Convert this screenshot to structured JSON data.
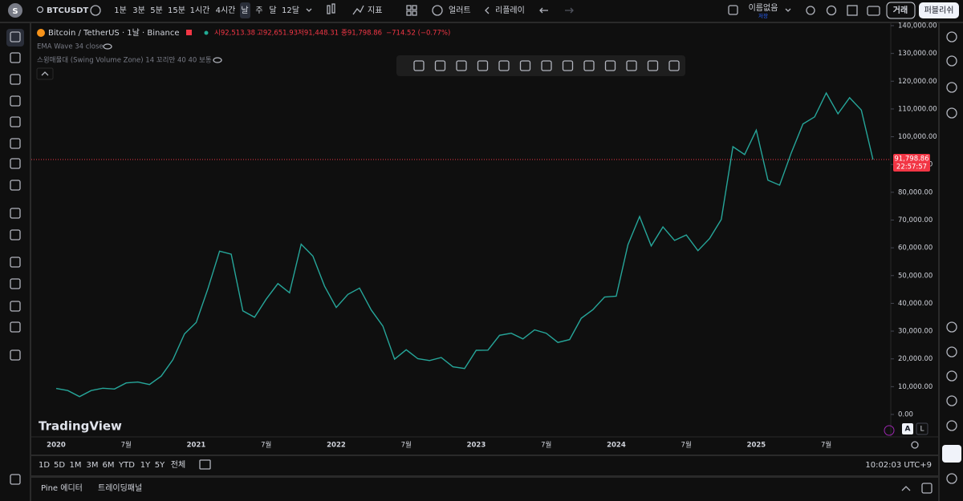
{
  "top_toolbar": {
    "symbol": "BTCUSDT",
    "intervals": [
      "1분",
      "3분",
      "5분",
      "15분",
      "1시간",
      "4시간",
      "날",
      "주",
      "달",
      "12달"
    ],
    "indicators": "지표",
    "alert": "얼러트",
    "replay": "리플레이",
    "layout_name": "이름없음",
    "layout_status": "저장",
    "trade": "거래",
    "publish": "퍼블리쉬"
  },
  "legend": {
    "symbol": "Bitcoin / TetherUS · 1날 · Binance",
    "ohlc": [
      "시92,513.38",
      "고92,651.93",
      "저91,448.31",
      "종91,798.86",
      "−714.52 (−0.77%)"
    ],
    "indicators": [
      "EMA Wave 34 close",
      "스윙매물대 (Swing Volume Zone) 14 꼬리만 40 40 보통"
    ]
  },
  "watermark": "TradingView",
  "chart_data": {
    "type": "line",
    "color": "#26a69a",
    "grid": false,
    "categories": [
      "2020",
      null,
      null,
      null,
      null,
      null,
      "7월",
      null,
      null,
      null,
      null,
      null,
      "2021",
      null,
      null,
      null,
      null,
      null,
      "7월",
      null,
      null,
      null,
      null,
      null,
      "2022",
      null,
      null,
      null,
      null,
      null,
      "7월",
      null,
      null,
      null,
      null,
      null,
      "2023",
      null,
      null,
      null,
      null,
      null,
      "7월",
      null,
      null,
      null,
      null,
      null,
      "2024",
      null,
      null,
      null,
      null,
      null,
      "7월",
      null,
      null,
      null,
      null,
      null,
      "2025",
      null,
      null,
      null,
      null,
      null,
      "7월",
      null,
      null,
      null,
      null
    ],
    "values": [
      9350,
      8600,
      6400,
      8600,
      9450,
      9140,
      11350,
      11650,
      10780,
      13800,
      19700,
      29000,
      33100,
      45200,
      58800,
      57700,
      37300,
      35000,
      41500,
      47100,
      43800,
      61300,
      57000,
      46200,
      38500,
      43200,
      45500,
      37600,
      31800,
      19900,
      23300,
      20050,
      19400,
      20500,
      17150,
      16550,
      23100,
      23150,
      28500,
      29250,
      27200,
      30450,
      29230,
      25930,
      26960,
      34640,
      37720,
      42280,
      42580,
      61130,
      71280,
      60670,
      67530,
      62680,
      64620,
      58970,
      63330,
      70220,
      96400,
      93580,
      102400,
      84350,
      82550,
      94200,
      104600,
      107150,
      115750,
      108250,
      114050,
      109600,
      91798.86
    ],
    "ylim": [
      0,
      140000
    ],
    "yticks": [
      {
        "value": 0,
        "label": "0.00"
      },
      {
        "value": 10000,
        "label": "10,000.00"
      },
      {
        "value": 20000,
        "label": "20,000.00"
      },
      {
        "value": 30000,
        "label": "30,000.00"
      },
      {
        "value": 40000,
        "label": "40,000.00"
      },
      {
        "value": 50000,
        "label": "50,000.00"
      },
      {
        "value": 60000,
        "label": "60,000.00"
      },
      {
        "value": 70000,
        "label": "70,000.00"
      },
      {
        "value": 80000,
        "label": "80,000.00"
      },
      {
        "value": 90000,
        "label": "90,000.00"
      },
      {
        "value": 100000,
        "label": "100,000.00"
      },
      {
        "value": 110000,
        "label": "110,000.00"
      },
      {
        "value": 120000,
        "label": "120,000.00"
      },
      {
        "value": 130000,
        "label": "130,000.00"
      },
      {
        "value": 140000,
        "label": "140,000.00"
      }
    ],
    "last_price": {
      "value": 91798.86,
      "label": "91,798.86",
      "countdown": "22:57:57",
      "color": "#f23645"
    },
    "auto_scale": "A",
    "log_scale": "L"
  },
  "range_buttons": [
    "1D",
    "5D",
    "1M",
    "3M",
    "6M",
    "YTD",
    "1Y",
    "5Y",
    "전체"
  ],
  "clock": "10:02:03 UTC+9",
  "bottom_tabs": [
    "Pine 에디터",
    "트레이딩패널"
  ]
}
